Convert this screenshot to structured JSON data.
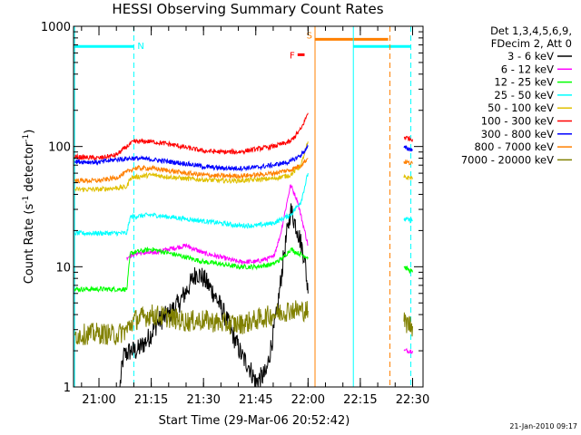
{
  "chart_data": {
    "type": "line",
    "title": "HESSI Observing Summary Count Rates",
    "xlabel": "Start Time (29-Mar-06 20:52:42)",
    "ylabel": "Count Rate (s⁻¹ detector⁻¹)",
    "ylabel_parts": {
      "main": "Count Rate (s",
      "sup1": "-1",
      "mid": " detector",
      "sup2": "-1",
      "end": ")"
    },
    "y_scale": "log",
    "ylim": [
      1,
      1000
    ],
    "xlim": [
      "20:52:42",
      "22:33:00"
    ],
    "x_ticks": [
      "21:00",
      "21:15",
      "21:30",
      "21:45",
      "22:00",
      "22:15",
      "22:30"
    ],
    "y_ticks": [
      "1",
      "10",
      "100",
      "1000"
    ],
    "legend": {
      "position": "right",
      "header": [
        "Det 1,3,4,5,6,9,",
        "FDecim 2, Att 0"
      ],
      "entries": [
        {
          "label": "3 - 6 keV",
          "color": "#000000"
        },
        {
          "label": "6 - 12 keV",
          "color": "#ff00ff"
        },
        {
          "label": "12 - 25 keV",
          "color": "#00ff00"
        },
        {
          "label": "25 - 50 keV",
          "color": "#00ffff"
        },
        {
          "label": "50 - 100 keV",
          "color": "#e0c000"
        },
        {
          "label": "100 - 300 keV",
          "color": "#ff0000"
        },
        {
          "label": "300 - 800 keV",
          "color": "#0000ff"
        },
        {
          "label": "800 - 7000 keV",
          "color": "#ff8000"
        },
        {
          "label": "7000 - 20000 keV",
          "color": "#808000"
        }
      ]
    },
    "flags": [
      {
        "label": "N",
        "color": "#00ffff",
        "start": "20:52:42",
        "end": "21:10:00",
        "value": 680
      },
      {
        "label": "F",
        "color": "#ff0000",
        "start": "21:57:00",
        "end": "21:59:00",
        "value": 580
      },
      {
        "label": "S",
        "color": "#ff8000",
        "start": "22:02:00",
        "end": "22:23:00",
        "value": 780
      },
      {
        "label": "",
        "color": "#00ffff",
        "start": "22:13:00",
        "end": "22:29:30",
        "value": 680
      }
    ],
    "vlines": [
      {
        "time": "20:53:00",
        "color": "#00ffff",
        "style": "solid"
      },
      {
        "time": "21:10:00",
        "color": "#00ffff",
        "style": "dashed"
      },
      {
        "time": "22:02:00",
        "color": "#ff8000",
        "style": "solid"
      },
      {
        "time": "22:13:00",
        "color": "#00ffff",
        "style": "solid"
      },
      {
        "time": "22:23:30",
        "color": "#ff8000",
        "style": "dashed"
      },
      {
        "time": "22:29:30",
        "color": "#00ffff",
        "style": "dashed"
      }
    ],
    "series": [
      {
        "name": "3 - 6 keV",
        "color": "#000000",
        "points": [
          [
            "21:06",
            "1"
          ],
          [
            "21:07",
            "1.8"
          ],
          [
            "21:09",
            "2"
          ],
          [
            "21:11",
            "2"
          ],
          [
            "21:14",
            "2.5"
          ],
          [
            "21:17",
            "3.5"
          ],
          [
            "21:20",
            "4"
          ],
          [
            "21:23",
            "5"
          ],
          [
            "21:26",
            "7"
          ],
          [
            "21:28",
            "9"
          ],
          [
            "21:30",
            "8"
          ],
          [
            "21:33",
            "6"
          ],
          [
            "21:36",
            "4"
          ],
          [
            "21:39",
            "2.5"
          ],
          [
            "21:41",
            "1.8"
          ],
          [
            "21:43",
            "1.5"
          ],
          [
            "21:45",
            "1.1"
          ],
          [
            "21:48",
            "1.3"
          ],
          [
            "21:51",
            "4"
          ],
          [
            "21:53",
            "12"
          ],
          [
            "21:55",
            "30"
          ],
          [
            "21:57",
            "20"
          ],
          [
            "21:59",
            "12"
          ],
          [
            "22:00",
            "6"
          ]
        ]
      },
      {
        "name": "6 - 12 keV",
        "color": "#ff00ff",
        "points": [
          [
            "21:08",
            "12"
          ],
          [
            "21:11",
            "13"
          ],
          [
            "21:15",
            "13"
          ],
          [
            "21:20",
            "14"
          ],
          [
            "21:25",
            "15"
          ],
          [
            "21:30",
            "13"
          ],
          [
            "21:35",
            "12"
          ],
          [
            "21:40",
            "11"
          ],
          [
            "21:45",
            "11"
          ],
          [
            "21:50",
            "12"
          ],
          [
            "21:52",
            "18"
          ],
          [
            "21:54",
            "35"
          ],
          [
            "21:55",
            "48"
          ],
          [
            "21:57",
            "35"
          ],
          [
            "21:59",
            "20"
          ],
          [
            "22:00",
            "15"
          ],
          [
            "22:27:30",
            "2"
          ],
          [
            "22:30",
            "2"
          ]
        ]
      },
      {
        "name": "12 - 25 keV",
        "color": "#00ff00",
        "points": [
          [
            "20:53",
            "6.5"
          ],
          [
            "21:00",
            "6.5"
          ],
          [
            "21:08",
            "6.5"
          ],
          [
            "21:09",
            "13"
          ],
          [
            "21:15",
            "14"
          ],
          [
            "21:20",
            "13"
          ],
          [
            "21:25",
            "12"
          ],
          [
            "21:30",
            "11"
          ],
          [
            "21:35",
            "10.5"
          ],
          [
            "21:40",
            "10"
          ],
          [
            "21:45",
            "10"
          ],
          [
            "21:50",
            "10.5"
          ],
          [
            "21:53",
            "12"
          ],
          [
            "21:55",
            "14"
          ],
          [
            "21:57",
            "13"
          ],
          [
            "22:00",
            "12"
          ],
          [
            "22:27:30",
            "10"
          ],
          [
            "22:30",
            "9"
          ]
        ]
      },
      {
        "name": "25 - 50 keV",
        "color": "#00ffff",
        "points": [
          [
            "20:53",
            "19"
          ],
          [
            "21:00",
            "19"
          ],
          [
            "21:08",
            "19"
          ],
          [
            "21:09",
            "26"
          ],
          [
            "21:15",
            "27"
          ],
          [
            "21:20",
            "26"
          ],
          [
            "21:25",
            "25"
          ],
          [
            "21:30",
            "24"
          ],
          [
            "21:35",
            "23"
          ],
          [
            "21:40",
            "22"
          ],
          [
            "21:45",
            "22"
          ],
          [
            "21:50",
            "23"
          ],
          [
            "21:55",
            "27"
          ],
          [
            "21:58",
            "35"
          ],
          [
            "22:00",
            "60"
          ],
          [
            "22:27:30",
            "25"
          ],
          [
            "22:30",
            "24"
          ]
        ]
      },
      {
        "name": "50 - 100 keV",
        "color": "#e0c000",
        "points": [
          [
            "20:53",
            "44"
          ],
          [
            "21:00",
            "44"
          ],
          [
            "21:08",
            "46"
          ],
          [
            "21:09",
            "55"
          ],
          [
            "21:15",
            "58"
          ],
          [
            "21:20",
            "56"
          ],
          [
            "21:25",
            "54"
          ],
          [
            "21:30",
            "53"
          ],
          [
            "21:35",
            "52"
          ],
          [
            "21:40",
            "52"
          ],
          [
            "21:45",
            "53"
          ],
          [
            "21:50",
            "54"
          ],
          [
            "21:55",
            "58"
          ],
          [
            "21:58",
            "70"
          ],
          [
            "22:00",
            "110"
          ],
          [
            "22:27:30",
            "55"
          ],
          [
            "22:30",
            "55"
          ]
        ]
      },
      {
        "name": "100 - 300 keV",
        "color": "#ff0000",
        "points": [
          [
            "20:53",
            "82"
          ],
          [
            "21:00",
            "80"
          ],
          [
            "21:05",
            "85"
          ],
          [
            "21:08",
            "100"
          ],
          [
            "21:10",
            "110"
          ],
          [
            "21:15",
            "110"
          ],
          [
            "21:20",
            "105"
          ],
          [
            "21:25",
            "98"
          ],
          [
            "21:30",
            "92"
          ],
          [
            "21:35",
            "90"
          ],
          [
            "21:40",
            "90"
          ],
          [
            "21:45",
            "95"
          ],
          [
            "21:50",
            "100"
          ],
          [
            "21:55",
            "110"
          ],
          [
            "21:58",
            "140"
          ],
          [
            "22:00",
            "190"
          ],
          [
            "22:27:30",
            "120"
          ],
          [
            "22:30",
            "115"
          ]
        ]
      },
      {
        "name": "300 - 800 keV",
        "color": "#0000ff",
        "points": [
          [
            "20:53",
            "75"
          ],
          [
            "21:00",
            "74"
          ],
          [
            "21:05",
            "78"
          ],
          [
            "21:10",
            "80"
          ],
          [
            "21:15",
            "78"
          ],
          [
            "21:20",
            "75"
          ],
          [
            "21:25",
            "72"
          ],
          [
            "21:30",
            "68"
          ],
          [
            "21:35",
            "66"
          ],
          [
            "21:40",
            "66"
          ],
          [
            "21:45",
            "67"
          ],
          [
            "21:50",
            "70"
          ],
          [
            "21:55",
            "75"
          ],
          [
            "21:58",
            "85"
          ],
          [
            "22:00",
            "100"
          ],
          [
            "22:27:30",
            "98"
          ],
          [
            "22:30",
            "94"
          ]
        ]
      },
      {
        "name": "800 - 7000 keV",
        "color": "#ff8000",
        "points": [
          [
            "20:53",
            "52"
          ],
          [
            "21:00",
            "52"
          ],
          [
            "21:05",
            "55"
          ],
          [
            "21:10",
            "66"
          ],
          [
            "21:15",
            "66"
          ],
          [
            "21:20",
            "63"
          ],
          [
            "21:25",
            "60"
          ],
          [
            "21:30",
            "58"
          ],
          [
            "21:35",
            "57"
          ],
          [
            "21:40",
            "57"
          ],
          [
            "21:45",
            "58"
          ],
          [
            "21:50",
            "60"
          ],
          [
            "21:55",
            "64"
          ],
          [
            "21:58",
            "70"
          ],
          [
            "22:00",
            "80"
          ],
          [
            "22:27:30",
            "75"
          ],
          [
            "22:30",
            "72"
          ]
        ]
      },
      {
        "name": "7000 - 20000 keV",
        "color": "#808000",
        "points": [
          [
            "20:53",
            "2.7"
          ],
          [
            "21:00",
            "2.8"
          ],
          [
            "21:05",
            "2.7"
          ],
          [
            "21:08",
            "3"
          ],
          [
            "21:10",
            "3.6"
          ],
          [
            "21:15",
            "4"
          ],
          [
            "21:20",
            "3.8"
          ],
          [
            "21:25",
            "3.5"
          ],
          [
            "21:30",
            "3.6"
          ],
          [
            "21:35",
            "3.4"
          ],
          [
            "21:40",
            "3.3"
          ],
          [
            "21:45",
            "3.6"
          ],
          [
            "21:50",
            "4"
          ],
          [
            "21:55",
            "4.4"
          ],
          [
            "22:00",
            "4.3"
          ],
          [
            "22:27:30",
            "3.5"
          ],
          [
            "22:30",
            "3.2"
          ]
        ]
      }
    ]
  },
  "footer": {
    "timestamp": "21-Jan-2010 09:17"
  }
}
